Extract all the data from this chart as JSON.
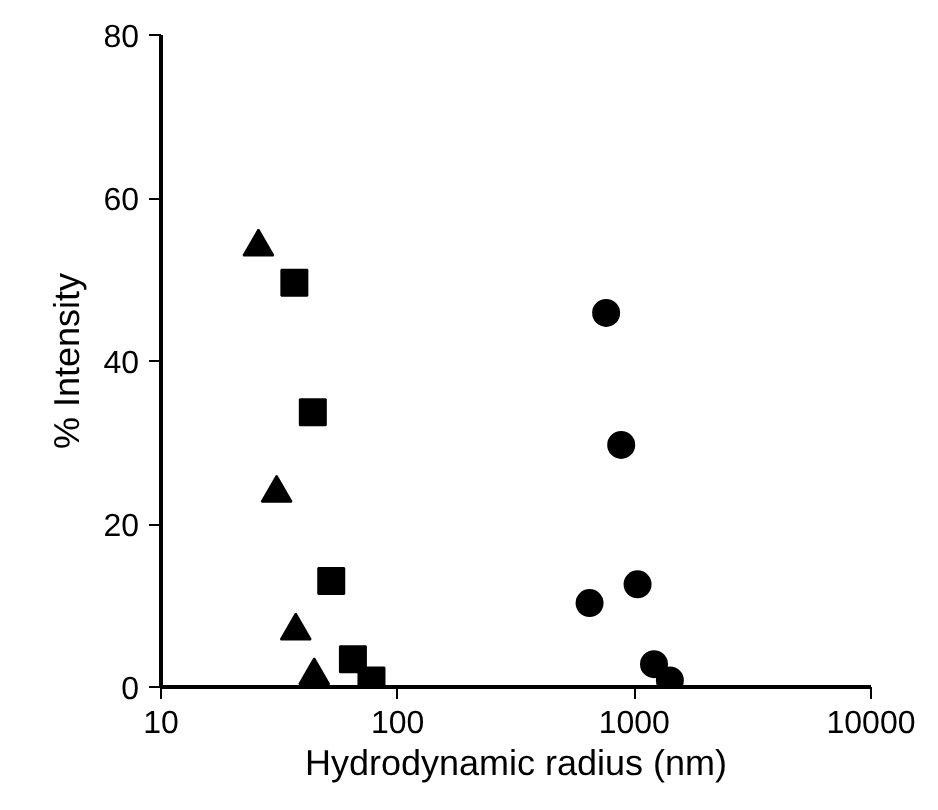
{
  "chart_data": {
    "type": "scatter",
    "xlabel": "Hydrodynamic radius (nm)",
    "ylabel": "% Intensity",
    "log": "x",
    "xlim": [
      10,
      10000
    ],
    "xticks": [
      10,
      100,
      1000,
      10000
    ],
    "ylim": [
      0,
      80
    ],
    "yticks": [
      0,
      20,
      40,
      60,
      80
    ],
    "grid": false,
    "series": [
      {
        "color": "#000000",
        "marker": "triangle",
        "x": [
          25.8,
          30.8,
          37.1,
          44.4
        ],
        "values": [
          54.0,
          23.8,
          6.9,
          1.4
        ]
      },
      {
        "color": "#000000",
        "marker": "square",
        "x": [
          36.6,
          43.8,
          52.4,
          64.7,
          77.5
        ],
        "values": [
          49.6,
          33.7,
          13.0,
          3.4,
          0.8
        ]
      },
      {
        "color": "#000000",
        "marker": "circle",
        "x": [
          760,
          880,
          647,
          1032,
          1211,
          1413
        ],
        "values": [
          45.9,
          29.7,
          10.3,
          12.6,
          2.8,
          0.8
        ]
      }
    ]
  }
}
